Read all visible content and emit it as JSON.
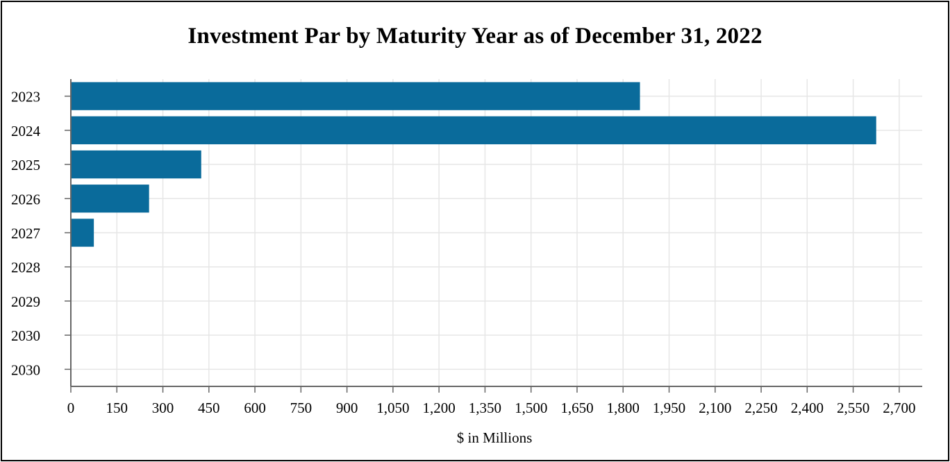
{
  "chart_data": {
    "type": "bar",
    "orientation": "horizontal",
    "title": "Investment Par by Maturity Year as of December 31, 2022",
    "xlabel": "$ in Millions",
    "ylabel": "",
    "categories": [
      "2023",
      "2024",
      "2025",
      "2026",
      "2027",
      "2028",
      "2029",
      "2030",
      "2030"
    ],
    "values": [
      1855,
      2625,
      425,
      255,
      75,
      0,
      0,
      0,
      0
    ],
    "xlim": [
      0,
      2775
    ],
    "xticks": [
      0,
      150,
      300,
      450,
      600,
      750,
      900,
      1050,
      1200,
      1350,
      1500,
      1650,
      1800,
      1950,
      2100,
      2250,
      2400,
      2550,
      2700
    ],
    "xtick_labels": [
      "0",
      "150",
      "300",
      "450",
      "600",
      "750",
      "900",
      "1,050",
      "1,200",
      "1,350",
      "1,500",
      "1,650",
      "1,800",
      "1,950",
      "2,100",
      "2,250",
      "2,400",
      "2,550",
      "2,700"
    ],
    "grid": true,
    "legend": "none",
    "colors": {
      "bar": "#0a6b9b",
      "grid": "#e6e6e6",
      "axis": "#666666"
    }
  }
}
